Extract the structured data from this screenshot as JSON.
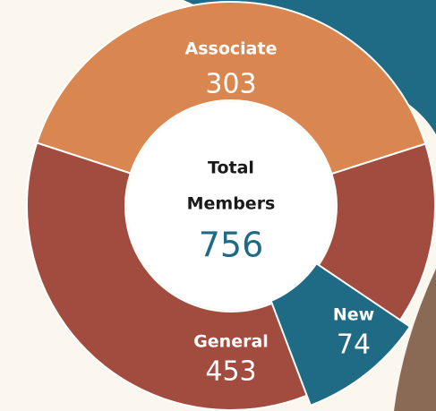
{
  "chart_data": {
    "type": "donut",
    "categories": [
      "Associate",
      "General"
    ],
    "values": [
      303,
      453
    ],
    "colors": [
      "#d98650",
      "#a24b3f"
    ],
    "highlight": {
      "name": "New",
      "value": 74,
      "color": "#1f6a85"
    },
    "center_label": [
      "Total",
      "Members"
    ],
    "total": 756
  }
}
